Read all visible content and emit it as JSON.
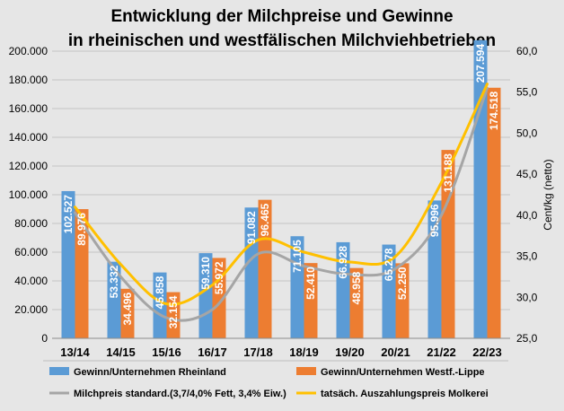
{
  "chart_data": {
    "type": "bar",
    "title_lines": [
      "Entwicklung der Milchpreise und Gewinne",
      "in rheinischen und westfälischen Milchviehbetrieben"
    ],
    "categories": [
      "13/14",
      "14/15",
      "15/16",
      "16/17",
      "17/18",
      "18/19",
      "19/20",
      "20/21",
      "21/22",
      "22/23"
    ],
    "series": [
      {
        "name": "Gewinn/Unternehmen Rheinland",
        "kind": "bar",
        "axis": "left",
        "color": "#5b9bd5",
        "values": [
          102527,
          53332,
          45858,
          59310,
          91082,
          71105,
          66928,
          65278,
          95996,
          207594
        ],
        "labels": [
          "102.527",
          "53.332",
          "45.858",
          "59.310",
          "91.082",
          "71.105",
          "66.928",
          "65.278",
          "95.996",
          "207.594"
        ]
      },
      {
        "name": "Gewinn/Unternehmen Westf.-Lippe",
        "kind": "bar",
        "axis": "left",
        "color": "#ed7d31",
        "values": [
          89976,
          34496,
          32154,
          55972,
          96465,
          52410,
          48958,
          52250,
          131188,
          174518
        ],
        "labels": [
          "89.976",
          "34.496",
          "32.154",
          "55.972",
          "96.465",
          "52.410",
          "48.958",
          "52.250",
          "131.188",
          "174.518"
        ]
      },
      {
        "name": "Milchpreis standard.(3,7/4,0% Fett, 3,4% Eiw.)",
        "kind": "line",
        "axis": "right",
        "color": "#a5a5a5",
        "values": [
          40.3,
          32.5,
          27.5,
          28.5,
          35.3,
          33.8,
          32.8,
          33.5,
          40.0,
          55.5
        ]
      },
      {
        "name": "tatsäch. Auszahlungspreis Molkerei",
        "kind": "line",
        "axis": "right",
        "color": "#ffc000",
        "values": [
          41.0,
          34.0,
          29.2,
          31.5,
          37.0,
          35.5,
          34.3,
          35.0,
          44.0,
          56.0
        ]
      }
    ],
    "y_left": {
      "ylim": [
        0,
        200000
      ],
      "ticks": [
        0,
        20000,
        40000,
        60000,
        80000,
        100000,
        120000,
        140000,
        160000,
        180000,
        200000
      ],
      "tick_labels": [
        "0",
        "20.000",
        "40.000",
        "60.000",
        "80.000",
        "100.000",
        "120.000",
        "140.000",
        "160.000",
        "180.000",
        "200.000"
      ]
    },
    "y_right": {
      "label": "Cent/kg (netto)",
      "ylim": [
        25,
        60
      ],
      "ticks": [
        25,
        30,
        35,
        40,
        45,
        50,
        55,
        60
      ],
      "tick_labels": [
        "25,0",
        "30,0",
        "35,0",
        "40,0",
        "45,0",
        "50,0",
        "55,0",
        "60,0"
      ]
    },
    "grid": true,
    "legend_position": "bottom"
  }
}
